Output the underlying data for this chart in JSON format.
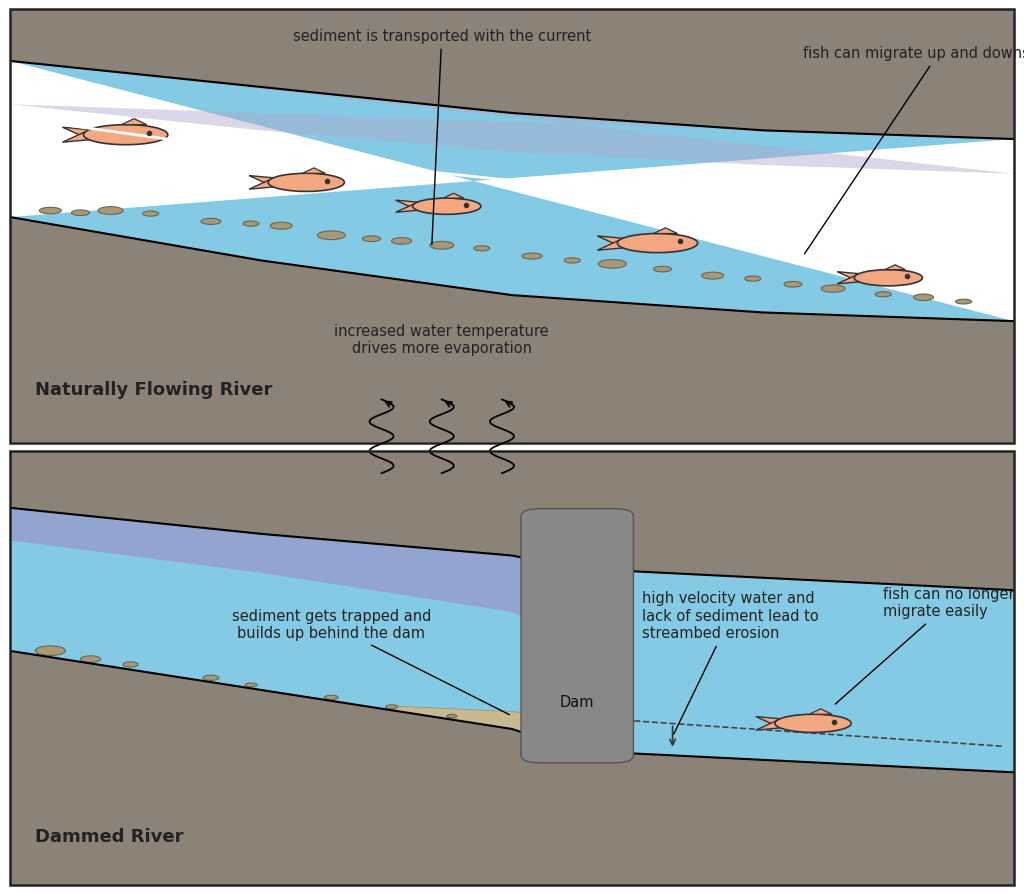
{
  "bg_color": "#ffffff",
  "ground_color": "#8B8278",
  "water_blue": "#7EC8E3",
  "water_purple": "#9B8FC0",
  "water_light_blue": "#B8D8EA",
  "fish_color": "#F4A882",
  "fish_outline": "#333333",
  "sediment_color": "#A89878",
  "sediment_outline": "#666655",
  "dam_color": "#888888",
  "text_color": "#222222",
  "panel1_title": "Naturally Flowing River",
  "panel2_title": "Dammed River",
  "label_sediment_natural": "sediment is transported with the current",
  "label_fish_natural": "fish can migrate up and downstream",
  "label_evaporation": "increased water temperature\ndrives more evaporation",
  "label_sediment_dam": "sediment gets trapped and\nbuilds up behind the dam",
  "label_erosion": "high velocity water and\nlack of sediment lead to\nstreambed erosion",
  "label_fish_dam": "fish can no longer\nmigrate easily",
  "label_dam": "Dam",
  "border_color": "#222222"
}
